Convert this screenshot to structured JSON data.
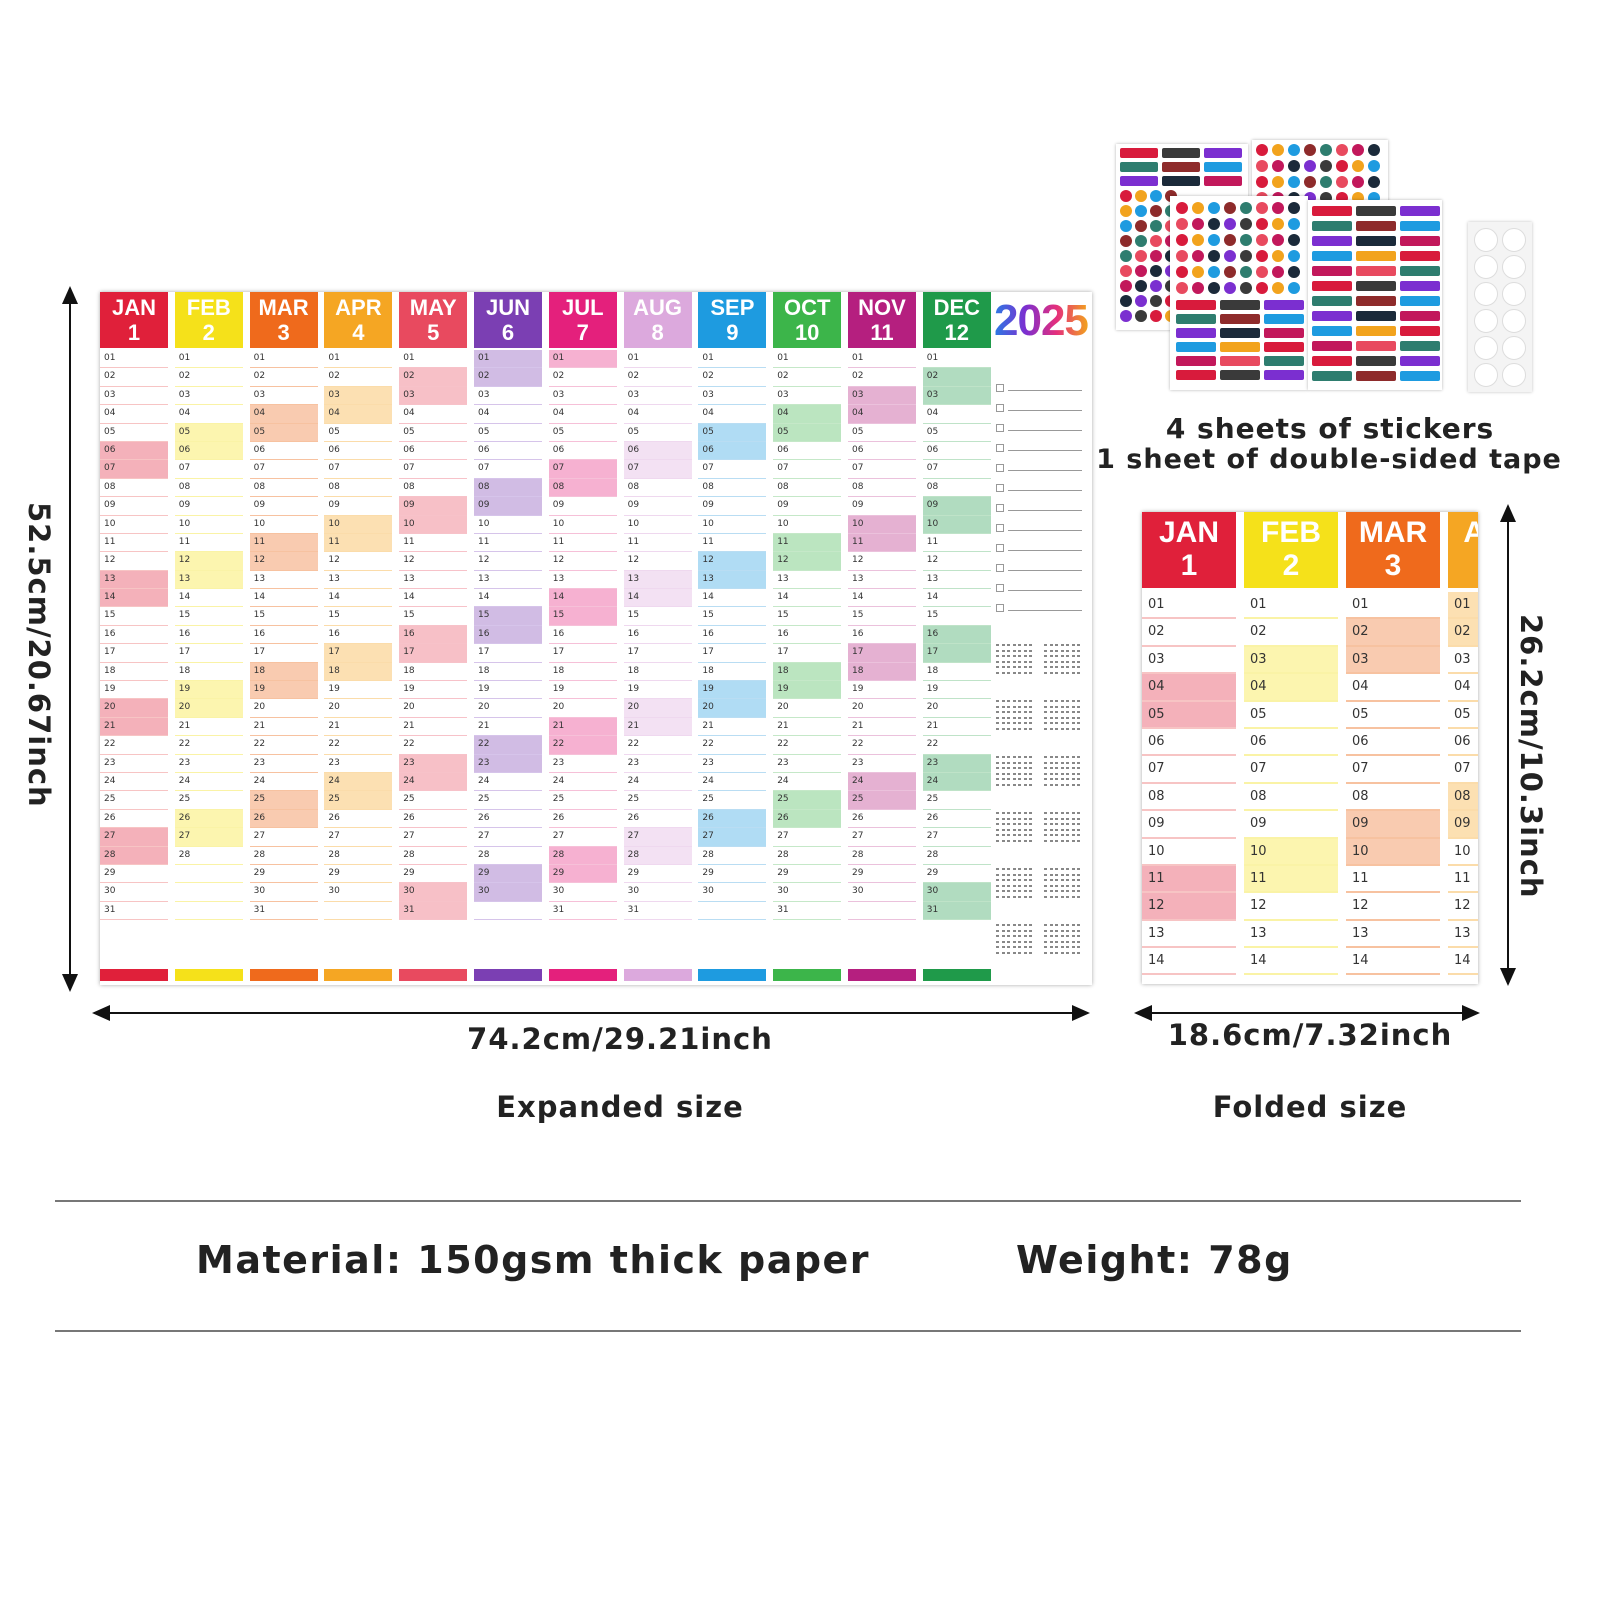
{
  "calendar": {
    "year": "2025",
    "months": [
      {
        "name": "JAN",
        "num": "1",
        "color": "#e0203a",
        "light": "#f7c4c4",
        "days": 31
      },
      {
        "name": "FEB",
        "num": "2",
        "color": "#f5e11a",
        "light": "#faf3a6",
        "days": 28
      },
      {
        "name": "MAR",
        "num": "3",
        "color": "#ef6a1c",
        "light": "#f7c2a0",
        "days": 31
      },
      {
        "name": "APR",
        "num": "4",
        "color": "#f5a623",
        "light": "#fbdcaa",
        "days": 30
      },
      {
        "name": "MAY",
        "num": "5",
        "color": "#e84a5f",
        "light": "#f7c2c9",
        "days": 31
      },
      {
        "name": "JUN",
        "num": "6",
        "color": "#7b3fb3",
        "light": "#d6c4ea",
        "days": 30
      },
      {
        "name": "JUL",
        "num": "7",
        "color": "#e4207c",
        "light": "#f6c0d8",
        "days": 31
      },
      {
        "name": "AUG",
        "num": "8",
        "color": "#dca9dd",
        "light": "#efd8ef",
        "days": 31
      },
      {
        "name": "SEP",
        "num": "9",
        "color": "#1e9be0",
        "light": "#b9ddf3",
        "days": 30
      },
      {
        "name": "OCT",
        "num": "10",
        "color": "#3cb54a",
        "light": "#c5e8c8",
        "days": 31
      },
      {
        "name": "NOV",
        "num": "11",
        "color": "#b51f7f",
        "light": "#ebc1dc",
        "days": 30
      },
      {
        "name": "DEC",
        "num": "12",
        "color": "#1f9a4a",
        "light": "#bfe3c8",
        "days": 31
      }
    ]
  },
  "dimensions": {
    "height_expanded": "52.5cm/20.67inch",
    "width_expanded": "74.2cm/29.21inch",
    "expanded_label": "Expanded size",
    "height_folded": "26.2cm/10.3inch",
    "width_folded": "18.6cm/7.32inch",
    "folded_label": "Folded size"
  },
  "stickers": {
    "line1": "4 sheets of stickers",
    "line2": "1 sheet of double-sided tape"
  },
  "specs": {
    "material": "Material: 150gsm thick paper",
    "weight": "Weight: 78g"
  }
}
